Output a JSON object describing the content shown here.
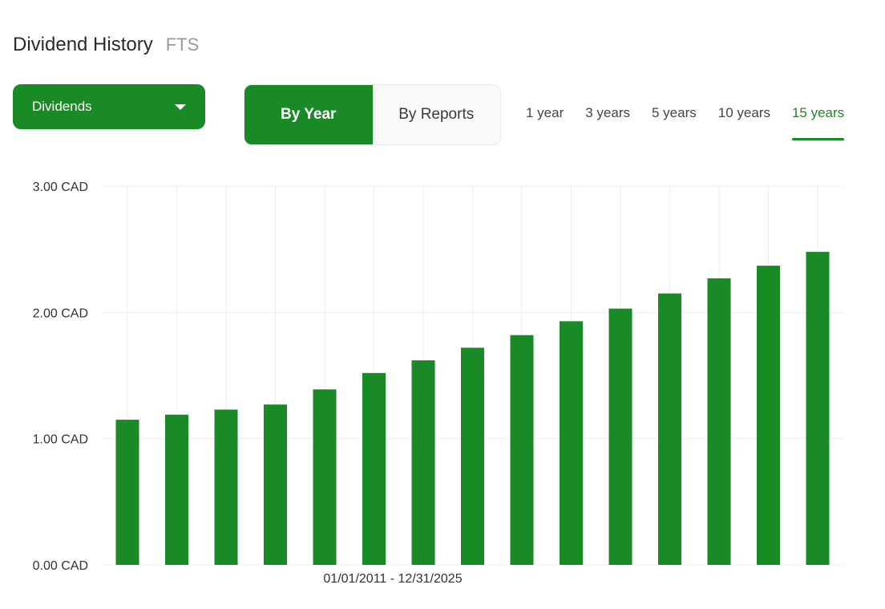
{
  "header": {
    "title": "Dividend History",
    "ticker": "FTS"
  },
  "dropdown": {
    "selected": "Dividends",
    "icon": "caret-down-icon"
  },
  "toggle": {
    "by_year": "By Year",
    "by_reports": "By Reports",
    "active": "by_year"
  },
  "periods": [
    {
      "label": "1 year",
      "active": false
    },
    {
      "label": "3 years",
      "active": false
    },
    {
      "label": "5 years",
      "active": false
    },
    {
      "label": "10 years",
      "active": false
    },
    {
      "label": "15 years",
      "active": true
    }
  ],
  "colors": {
    "accent": "#1a8a26",
    "bar": "#1a8a26",
    "grid": "#eeeeee"
  },
  "chart_data": {
    "type": "bar",
    "title": "",
    "xlabel": "",
    "ylabel": "",
    "date_range_label": "01/01/2011 - 12/31/2025",
    "ylim": [
      0,
      3
    ],
    "y_ticks": [
      "0.00 CAD",
      "1.00 CAD",
      "2.00 CAD",
      "3.00 CAD"
    ],
    "grid": true,
    "series": [
      {
        "values": [
          1.15,
          1.19,
          1.23,
          1.27,
          1.39,
          1.52,
          1.62,
          1.72,
          1.82,
          1.93,
          2.03,
          2.15,
          2.27,
          2.37,
          2.48
        ]
      }
    ]
  }
}
